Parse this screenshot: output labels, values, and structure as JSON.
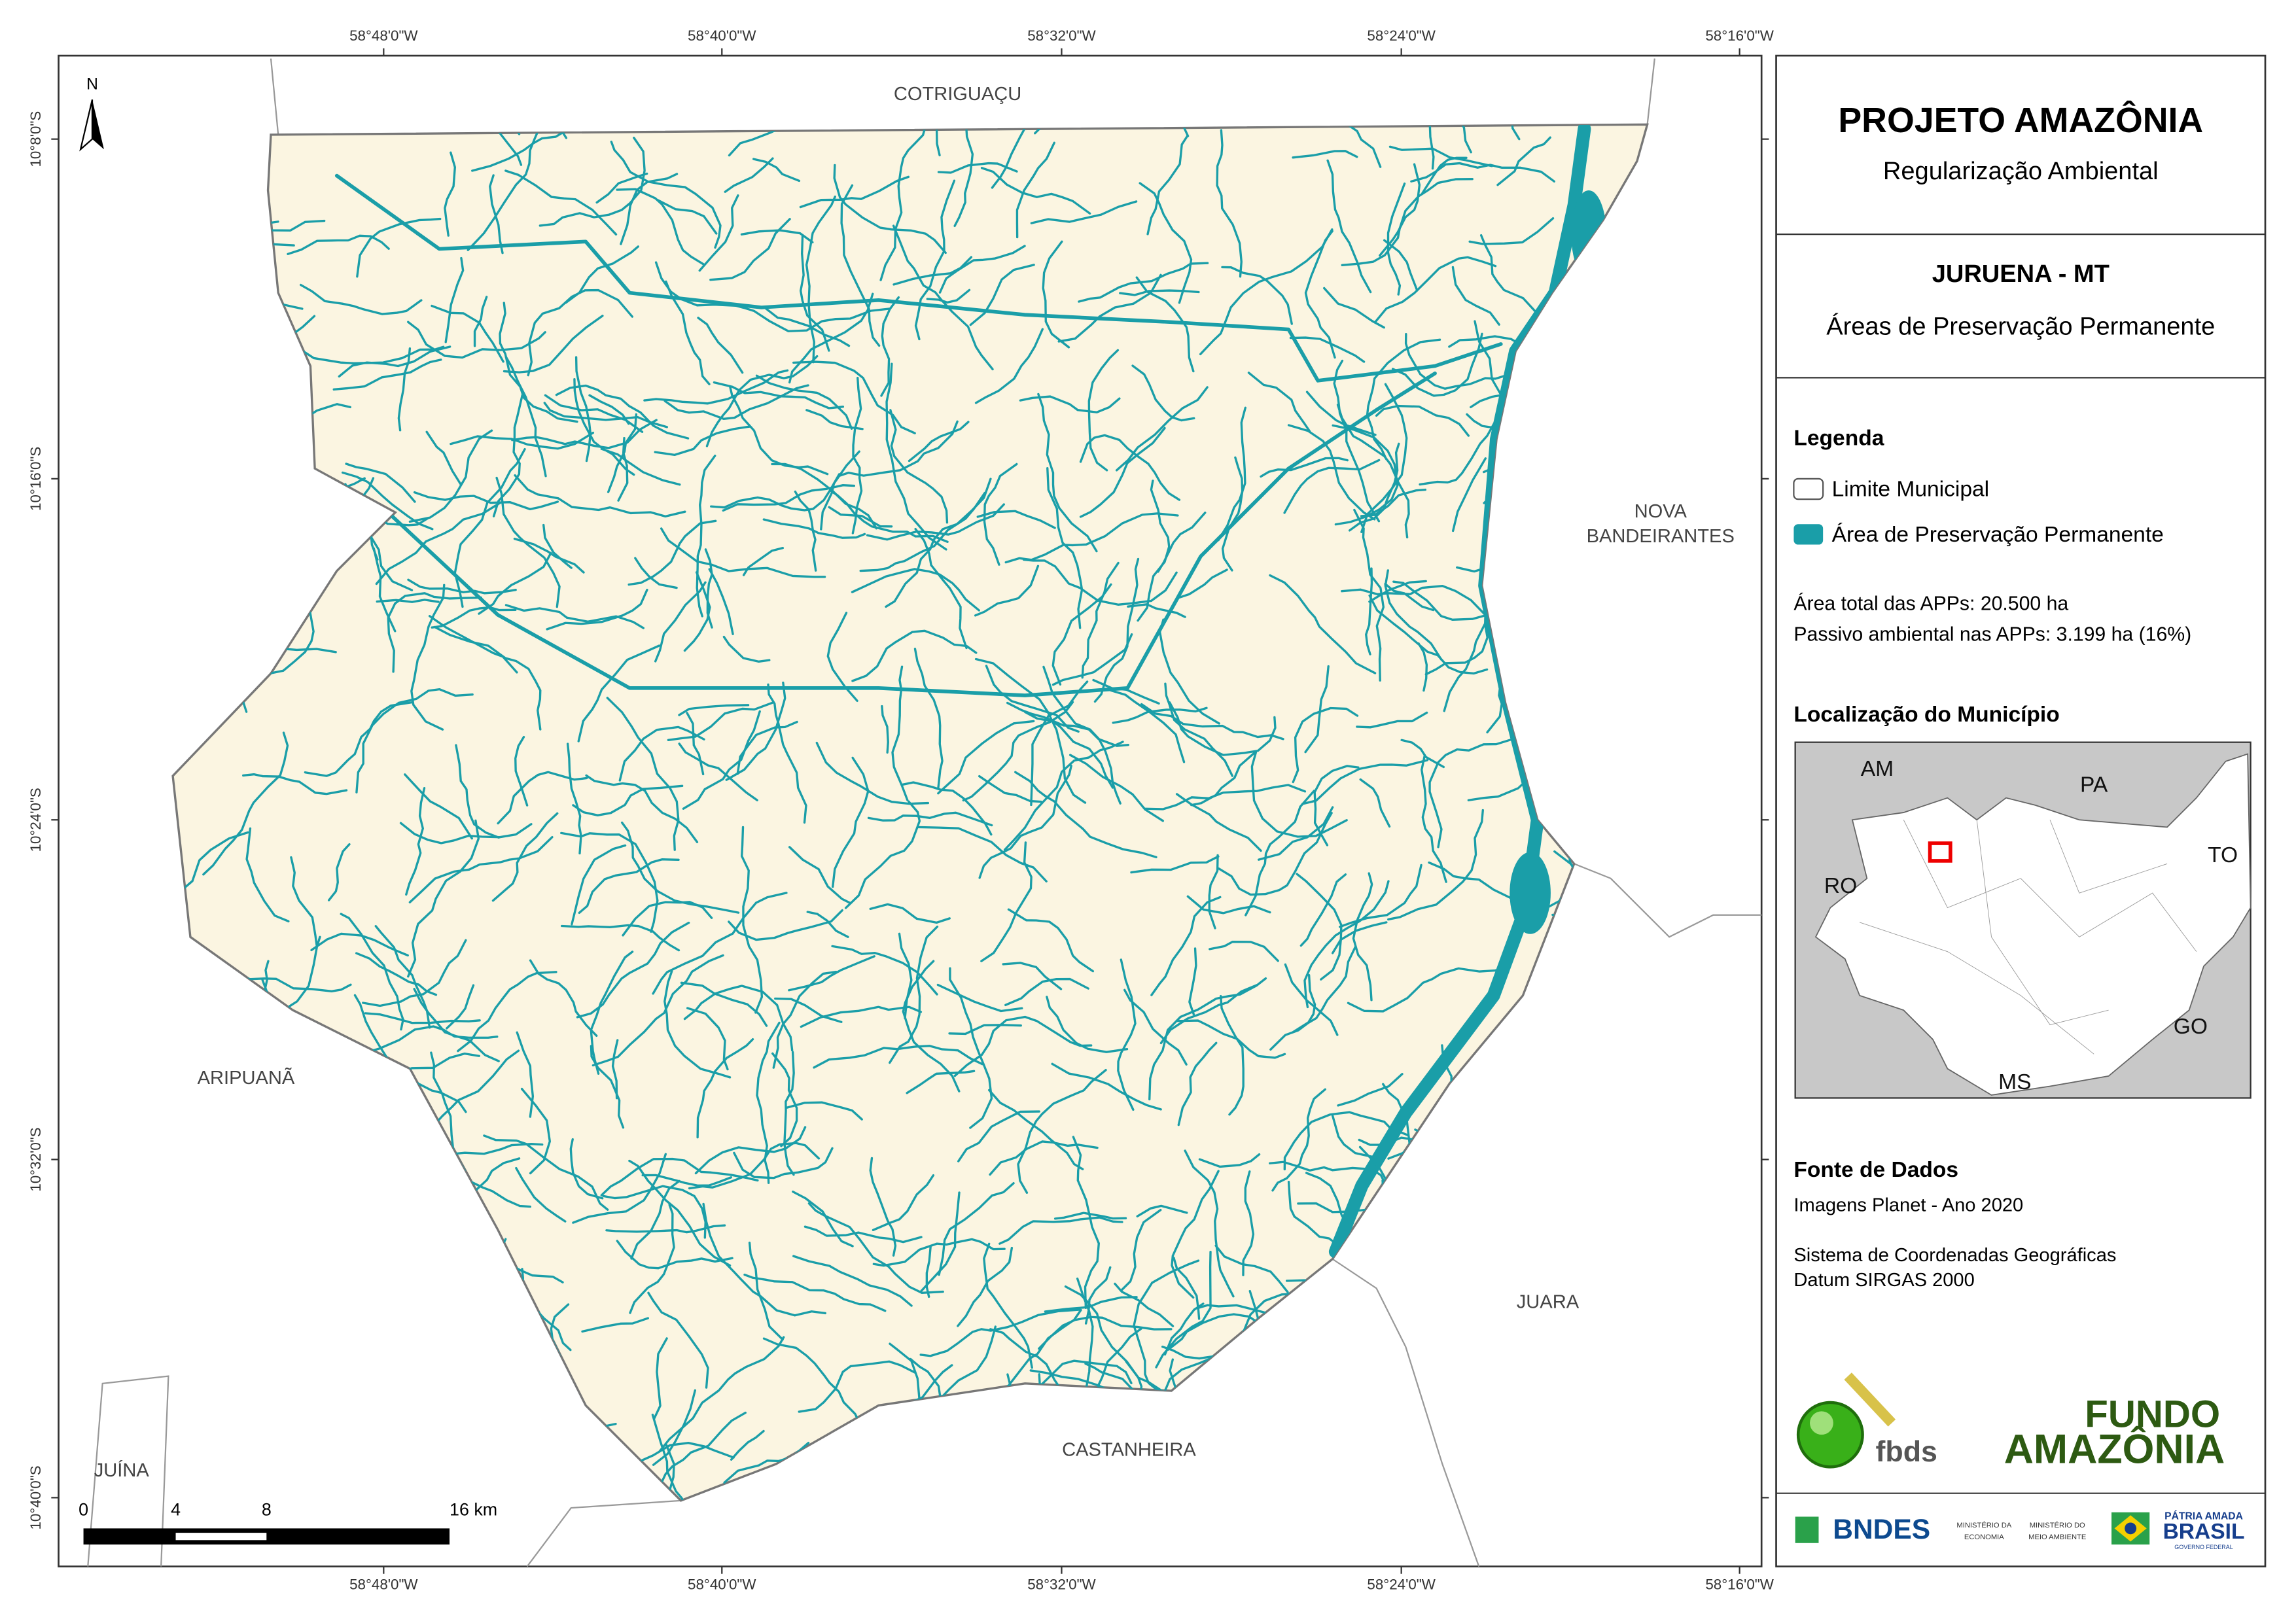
{
  "map": {
    "lon_labels": [
      "58°48'0\"W",
      "58°40'0\"W",
      "58°32'0\"W",
      "58°24'0\"W",
      "58°16'0\"W"
    ],
    "lat_labels": [
      "10°8'0\"S",
      "10°16'0\"S",
      "10°24'0\"S",
      "10°32'0\"S",
      "10°40'0\"S"
    ],
    "north": "N",
    "places": [
      "COTRIGUAÇU",
      "ARIPUANÃ",
      "JUARA",
      "CASTANHEIRA",
      "JUÍNA"
    ],
    "nova_bandeirantes": [
      "NOVA",
      "BANDEIRANTES"
    ],
    "scale_labels": [
      "0",
      "4",
      "8",
      "16 km"
    ]
  },
  "panel": {
    "title": "PROJETO AMAZÔNIA",
    "subtitle": "Regularização Ambiental",
    "municipality": "JURUENA - MT",
    "theme": "Áreas de Preservação Permanente",
    "legend": {
      "title": "Legenda",
      "items": [
        "Limite Municipal",
        "Área de Preservação Permanente"
      ]
    },
    "stats": [
      "Área total das APPs: 20.500 ha",
      "Passivo ambiental nas APPs: 3.199 ha (16%)"
    ],
    "location": {
      "title": "Localização do Município",
      "states": [
        "AM",
        "PA",
        "TO",
        "RO",
        "GO",
        "MS"
      ]
    },
    "sources": {
      "title": "Fonte de Dados",
      "lines": [
        "Imagens Planet - Ano 2020",
        "Sistema de Coordenadas Geográficas",
        "Datum SIRGAS 2000"
      ]
    },
    "logos": {
      "fbds": "fbds",
      "fundo": [
        "FUNDO",
        "AMAZÔNIA"
      ],
      "bndes": "BNDES",
      "economia": [
        "MINISTÉRIO DA",
        "ECONOMIA"
      ],
      "ambiente": [
        "MINISTÉRIO DO",
        "MEIO AMBIENTE"
      ],
      "patria": [
        "PÁTRIA AMADA",
        "BRASIL",
        "GOVERNO FEDERAL"
      ]
    }
  }
}
